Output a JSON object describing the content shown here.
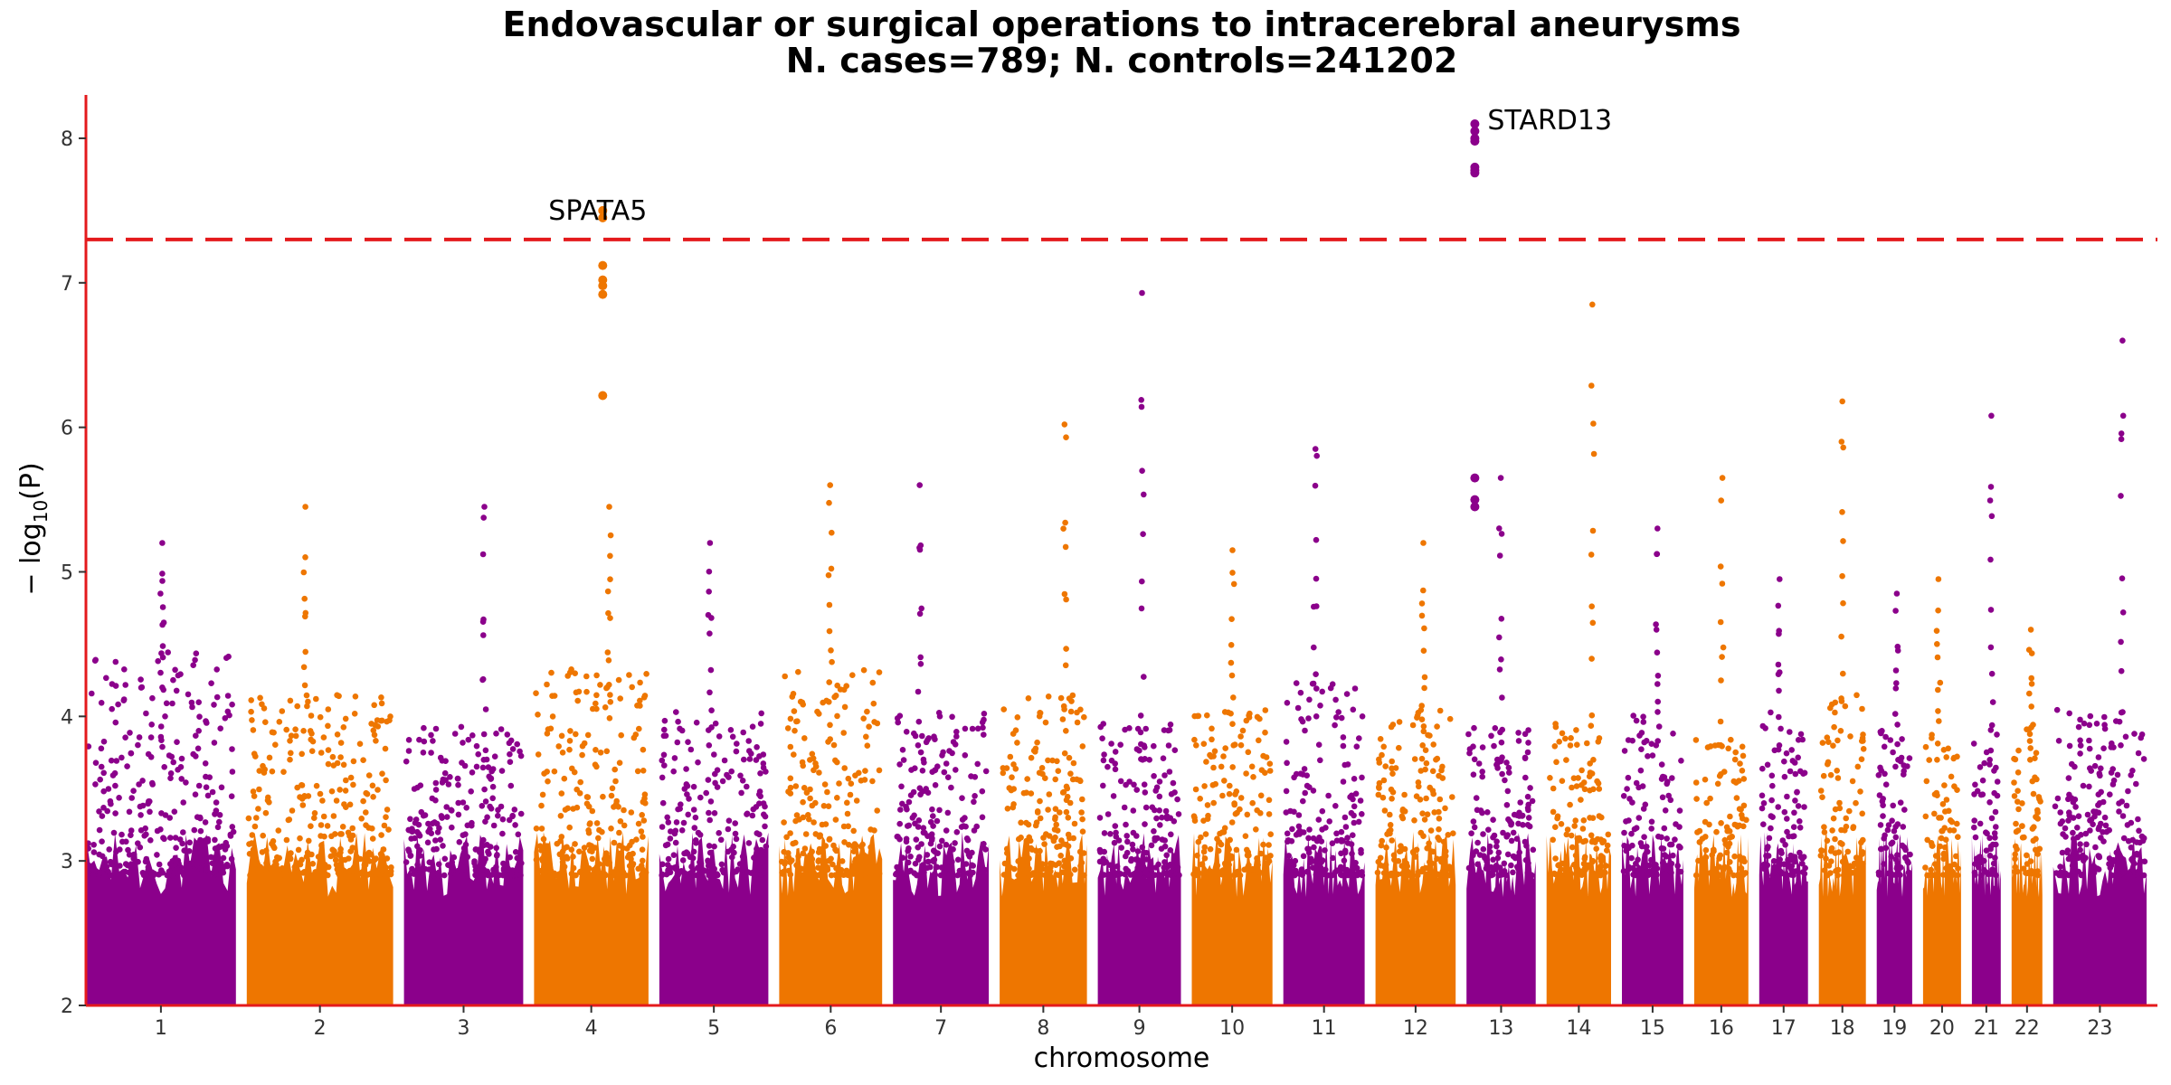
{
  "chart_data": {
    "type": "scatter",
    "title": "Endovascular or surgical operations to intracerebral aneurysms",
    "subtitle": "N. cases=789; N. controls=241202",
    "xlabel": "chromosome",
    "ylabel": "−log10(P)",
    "ylabel_main": "− log",
    "ylabel_sub": "10",
    "ylabel_paren": "(P)",
    "ylim": [
      2,
      8.3
    ],
    "y_ticks": [
      2,
      3,
      4,
      5,
      6,
      7,
      8
    ],
    "significance_line": 7.3,
    "colors": {
      "odd": "#8B008B",
      "even": "#EE7600",
      "axis": "#E41A1C",
      "threshold": "#E41A1C"
    },
    "chromosomes": [
      {
        "label": "1",
        "size": 249,
        "peak": 5.2,
        "dens": 4.2
      },
      {
        "label": "2",
        "size": 243,
        "peak": 5.45,
        "dens": 3.9
      },
      {
        "label": "3",
        "size": 198,
        "peak": 5.45,
        "dens": 3.7
      },
      {
        "label": "4",
        "size": 190,
        "peak": 5.45,
        "dens": 4.1
      },
      {
        "label": "5",
        "size": 181,
        "peak": 5.2,
        "dens": 3.8
      },
      {
        "label": "6",
        "size": 171,
        "peak": 5.6,
        "dens": 4.1
      },
      {
        "label": "7",
        "size": 159,
        "peak": 5.6,
        "dens": 3.8
      },
      {
        "label": "8",
        "size": 145,
        "peak": 6.02,
        "dens": 3.9
      },
      {
        "label": "9",
        "size": 138,
        "peak": 6.93,
        "dens": 3.7
      },
      {
        "label": "10",
        "size": 134,
        "peak": 5.15,
        "dens": 3.8
      },
      {
        "label": "11",
        "size": 135,
        "peak": 5.85,
        "dens": 4.0
      },
      {
        "label": "12",
        "size": 133,
        "peak": 5.2,
        "dens": 3.8
      },
      {
        "label": "13",
        "size": 115,
        "peak": 5.65,
        "dens": 3.7
      },
      {
        "label": "14",
        "size": 107,
        "peak": 6.85,
        "dens": 3.7
      },
      {
        "label": "15",
        "size": 102,
        "peak": 5.3,
        "dens": 3.8
      },
      {
        "label": "16",
        "size": 90,
        "peak": 5.65,
        "dens": 3.6
      },
      {
        "label": "17",
        "size": 81,
        "peak": 4.95,
        "dens": 3.8
      },
      {
        "label": "18",
        "size": 78,
        "peak": 6.18,
        "dens": 3.9
      },
      {
        "label": "19",
        "size": 59,
        "peak": 4.85,
        "dens": 3.7
      },
      {
        "label": "20",
        "size": 63,
        "peak": 4.95,
        "dens": 3.7
      },
      {
        "label": "21",
        "size": 48,
        "peak": 6.08,
        "dens": 3.7
      },
      {
        "label": "22",
        "size": 51,
        "peak": 4.6,
        "dens": 3.7
      },
      {
        "label": "23",
        "size": 155,
        "peak": 6.6,
        "dens": 3.8
      }
    ],
    "highlights": [
      {
        "gene": "SPATA5",
        "chrom": "4",
        "pos": 0.6,
        "values": [
          7.5,
          7.45,
          7.12,
          7.02,
          6.98,
          6.92,
          6.22
        ]
      },
      {
        "gene": "STARD13",
        "chrom": "13",
        "pos": 0.12,
        "values": [
          8.1,
          8.05,
          8.0,
          7.98,
          7.8,
          7.78,
          7.76,
          5.65,
          5.5,
          5.45
        ]
      }
    ]
  }
}
